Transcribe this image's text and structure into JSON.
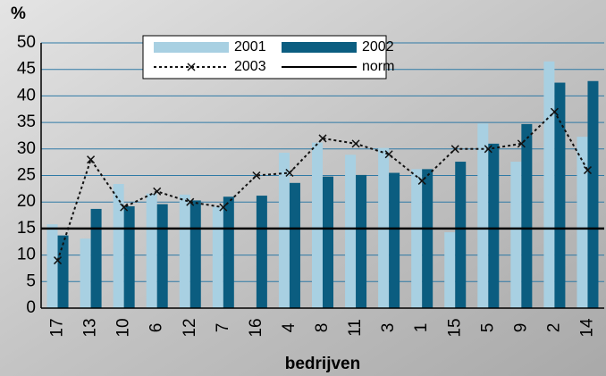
{
  "chart_data": {
    "type": "bar",
    "y_label": "%",
    "x_label": "bedrijven",
    "categories": [
      "17",
      "13",
      "10",
      "6",
      "12",
      "7",
      "16",
      "4",
      "8",
      "11",
      "3",
      "1",
      "15",
      "5",
      "9",
      "2",
      "14"
    ],
    "series": [
      {
        "name": "2001",
        "type": "bar",
        "color": "#a8d0e2",
        "values": [
          15.8,
          13.1,
          23.4,
          21.6,
          21.4,
          19.1,
          null,
          29.3,
          31.2,
          28.9,
          30.2,
          26.2,
          14.3,
          34.8,
          27.6,
          46.5,
          32.3
        ]
      },
      {
        "name": "2002",
        "type": "bar",
        "color": "#0b5d80",
        "values": [
          13.7,
          18.7,
          19.2,
          19.6,
          20.3,
          21.0,
          21.2,
          23.6,
          24.8,
          25.1,
          25.5,
          26.2,
          27.6,
          31.0,
          34.7,
          42.5,
          42.8
        ]
      },
      {
        "name": "2003",
        "type": "line",
        "dashed": true,
        "marker": "x",
        "color": "#111111",
        "values": [
          9,
          28,
          19,
          22,
          20,
          19,
          25,
          25.5,
          32,
          31,
          29,
          24,
          30,
          30,
          31,
          37,
          26
        ]
      },
      {
        "name": "norm",
        "type": "line",
        "color": "#000000",
        "values": [
          15,
          15,
          15,
          15,
          15,
          15,
          15,
          15,
          15,
          15,
          15,
          15,
          15,
          15,
          15,
          15,
          15
        ]
      }
    ],
    "ylim": [
      0,
      50
    ],
    "yticks": [
      0,
      5,
      10,
      15,
      20,
      25,
      30,
      35,
      40,
      45,
      50
    ],
    "grid": true
  }
}
